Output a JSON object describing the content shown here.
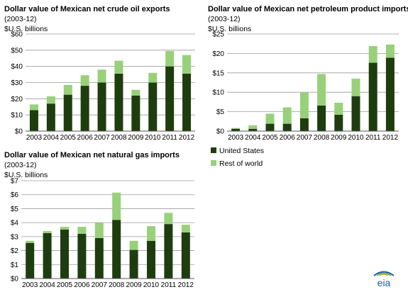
{
  "colors": {
    "us": "#1e3d0f",
    "rest": "#99d07a",
    "grid": "#9a9a9a",
    "axis": "#555555",
    "logo_blue": "#1f5ba6",
    "logo_green": "#63b345",
    "logo_gold": "#e3a72d"
  },
  "legend": {
    "items": [
      {
        "label": "United States",
        "color_key": "us"
      },
      {
        "label": "Rest of world",
        "color_key": "rest"
      }
    ]
  },
  "logo": {
    "text": "eia",
    "icon": "eia-logo"
  },
  "chart_data": [
    {
      "type": "bar",
      "stacked": true,
      "title": "Dollar value of Mexican net crude oil exports",
      "subtitle": "(2003-12)",
      "ylabel": "$U.S. billions",
      "ylim": [
        0,
        60
      ],
      "yticks": [
        0,
        10,
        20,
        30,
        40,
        50,
        60
      ],
      "ytick_labels": [
        "$0",
        "$10",
        "$20",
        "$30",
        "$40",
        "$50",
        "$60"
      ],
      "grid": true,
      "categories": [
        "2003",
        "2004",
        "2005",
        "2006",
        "2007",
        "2008",
        "2009",
        "2010",
        "2011",
        "2012"
      ],
      "series": [
        {
          "name": "United States",
          "values": [
            13,
            17,
            22.5,
            28,
            30,
            35.5,
            22,
            30,
            40,
            35.5
          ]
        },
        {
          "name": "Rest of world",
          "values": [
            3.5,
            4.5,
            6,
            6.5,
            8,
            8,
            3.5,
            6,
            9.5,
            11.5
          ]
        }
      ]
    },
    {
      "type": "bar",
      "stacked": true,
      "title": "Dollar value of Mexican net petroleum product imports",
      "subtitle": "(2003-12)",
      "ylabel": "$U.S. billions",
      "ylim": [
        0,
        25
      ],
      "yticks": [
        0,
        5,
        10,
        15,
        20,
        25
      ],
      "ytick_labels": [
        "$0",
        "$5",
        "$10",
        "$15",
        "$20",
        "$25"
      ],
      "grid": true,
      "categories": [
        "2003",
        "2004",
        "2005",
        "2006",
        "2007",
        "2008",
        "2009",
        "2010",
        "2011",
        "2012"
      ],
      "series": [
        {
          "name": "United States",
          "values": [
            0.6,
            0.6,
            1.9,
            1.9,
            3.3,
            6.6,
            4.2,
            9.0,
            17.6,
            18.9
          ]
        },
        {
          "name": "Rest of world",
          "values": [
            0.2,
            0.9,
            2.6,
            4.2,
            6.7,
            8.1,
            3.1,
            4.5,
            4.3,
            3.4
          ]
        }
      ]
    },
    {
      "type": "bar",
      "stacked": true,
      "title": "Dollar value of Mexican net natural gas imports",
      "subtitle": "(2003-12)",
      "ylabel": "$U.S. billions",
      "ylim": [
        0,
        7
      ],
      "yticks": [
        0,
        1,
        2,
        3,
        4,
        5,
        6,
        7
      ],
      "ytick_labels": [
        "$0",
        "$1",
        "$2",
        "$3",
        "$4",
        "$5",
        "$6",
        "$7"
      ],
      "grid": true,
      "categories": [
        "2003",
        "2004",
        "2005",
        "2006",
        "2007",
        "2008",
        "2009",
        "2010",
        "2011",
        "2012"
      ],
      "series": [
        {
          "name": "United States",
          "values": [
            2.55,
            3.25,
            3.5,
            3.2,
            2.9,
            4.2,
            2.05,
            2.7,
            3.9,
            3.3
          ]
        },
        {
          "name": "Rest of world",
          "values": [
            0.15,
            0.15,
            0.2,
            0.5,
            1.1,
            1.95,
            0.65,
            1.05,
            0.8,
            0.55
          ]
        }
      ]
    }
  ]
}
